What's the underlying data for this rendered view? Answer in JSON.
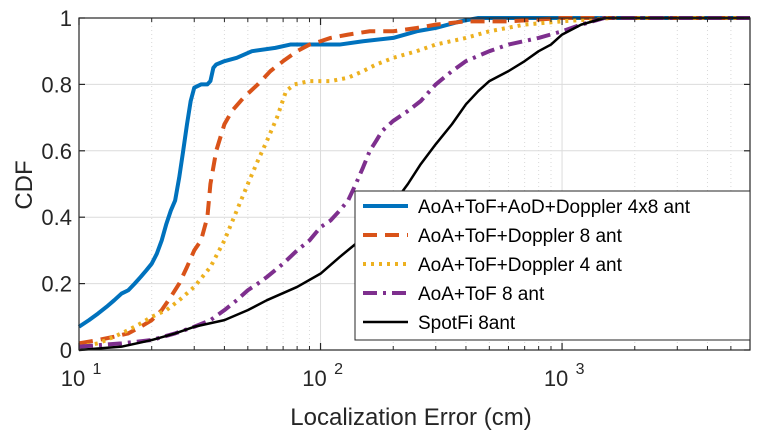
{
  "chart_data": {
    "type": "line",
    "xscale": "log",
    "xlabel": "Localization Error (cm)",
    "ylabel": "CDF",
    "xlim": [
      10,
      6000
    ],
    "ylim": [
      0,
      1
    ],
    "grid": true,
    "legend_position": "bottom-right",
    "xticks": [
      {
        "value": 10,
        "base": "10",
        "exp": "1"
      },
      {
        "value": 100,
        "base": "10",
        "exp": "2"
      },
      {
        "value": 1000,
        "base": "10",
        "exp": "3"
      }
    ],
    "yticks": [
      {
        "value": 0,
        "label": "0"
      },
      {
        "value": 0.2,
        "label": "0.2"
      },
      {
        "value": 0.4,
        "label": "0.4"
      },
      {
        "value": 0.6,
        "label": "0.6"
      },
      {
        "value": 0.8,
        "label": "0.8"
      },
      {
        "value": 1,
        "label": "1"
      }
    ],
    "series": [
      {
        "name": "AoA+ToF+AoD+Doppler 4x8 ant",
        "color": "#0072BD",
        "style": "solid",
        "width": 4,
        "points": [
          [
            10,
            0.07
          ],
          [
            11,
            0.09
          ],
          [
            12,
            0.11
          ],
          [
            13,
            0.13
          ],
          [
            14,
            0.15
          ],
          [
            15,
            0.17
          ],
          [
            16,
            0.18
          ],
          [
            17,
            0.2
          ],
          [
            18,
            0.22
          ],
          [
            19,
            0.24
          ],
          [
            20,
            0.26
          ],
          [
            21,
            0.29
          ],
          [
            22,
            0.33
          ],
          [
            23,
            0.38
          ],
          [
            24,
            0.42
          ],
          [
            25,
            0.45
          ],
          [
            26,
            0.52
          ],
          [
            27,
            0.6
          ],
          [
            28,
            0.68
          ],
          [
            29,
            0.75
          ],
          [
            30,
            0.79
          ],
          [
            32,
            0.8
          ],
          [
            34,
            0.8
          ],
          [
            35,
            0.81
          ],
          [
            36,
            0.85
          ],
          [
            37,
            0.86
          ],
          [
            40,
            0.87
          ],
          [
            45,
            0.88
          ],
          [
            52,
            0.9
          ],
          [
            65,
            0.91
          ],
          [
            75,
            0.92
          ],
          [
            100,
            0.92
          ],
          [
            120,
            0.92
          ],
          [
            150,
            0.93
          ],
          [
            200,
            0.94
          ],
          [
            250,
            0.96
          ],
          [
            300,
            0.97
          ],
          [
            380,
            0.99
          ],
          [
            450,
            1.0
          ],
          [
            6000,
            1.0
          ]
        ]
      },
      {
        "name": "AoA+ToF+Doppler 8 ant",
        "color": "#D95319",
        "style": "dash",
        "width": 4,
        "points": [
          [
            10,
            0.02
          ],
          [
            12,
            0.03
          ],
          [
            14,
            0.04
          ],
          [
            16,
            0.05
          ],
          [
            18,
            0.07
          ],
          [
            20,
            0.09
          ],
          [
            22,
            0.12
          ],
          [
            24,
            0.16
          ],
          [
            26,
            0.2
          ],
          [
            28,
            0.25
          ],
          [
            30,
            0.3
          ],
          [
            32,
            0.33
          ],
          [
            34,
            0.4
          ],
          [
            35,
            0.5
          ],
          [
            37,
            0.6
          ],
          [
            40,
            0.68
          ],
          [
            43,
            0.72
          ],
          [
            48,
            0.76
          ],
          [
            55,
            0.8
          ],
          [
            62,
            0.84
          ],
          [
            70,
            0.87
          ],
          [
            80,
            0.9
          ],
          [
            90,
            0.92
          ],
          [
            100,
            0.93
          ],
          [
            110,
            0.94
          ],
          [
            130,
            0.95
          ],
          [
            160,
            0.96
          ],
          [
            200,
            0.96
          ],
          [
            250,
            0.97
          ],
          [
            300,
            0.98
          ],
          [
            400,
            0.99
          ],
          [
            600,
            0.99
          ],
          [
            1000,
            1.0
          ],
          [
            6000,
            1.0
          ]
        ]
      },
      {
        "name": "AoA+ToF+Doppler 4 ant",
        "color": "#EDB120",
        "style": "dot",
        "width": 4,
        "points": [
          [
            10,
            0.01
          ],
          [
            12,
            0.02
          ],
          [
            14,
            0.04
          ],
          [
            16,
            0.06
          ],
          [
            18,
            0.08
          ],
          [
            20,
            0.1
          ],
          [
            23,
            0.12
          ],
          [
            26,
            0.15
          ],
          [
            30,
            0.19
          ],
          [
            35,
            0.25
          ],
          [
            40,
            0.33
          ],
          [
            45,
            0.42
          ],
          [
            50,
            0.5
          ],
          [
            55,
            0.57
          ],
          [
            60,
            0.63
          ],
          [
            66,
            0.7
          ],
          [
            72,
            0.78
          ],
          [
            78,
            0.8
          ],
          [
            90,
            0.81
          ],
          [
            110,
            0.81
          ],
          [
            130,
            0.82
          ],
          [
            150,
            0.84
          ],
          [
            170,
            0.86
          ],
          [
            200,
            0.88
          ],
          [
            250,
            0.9
          ],
          [
            300,
            0.92
          ],
          [
            400,
            0.94
          ],
          [
            500,
            0.96
          ],
          [
            700,
            0.98
          ],
          [
            1000,
            0.99
          ],
          [
            1600,
            1.0
          ],
          [
            6000,
            1.0
          ]
        ]
      },
      {
        "name": "AoA+ToF 8 ant",
        "color": "#7E2F8E",
        "style": "dashdot",
        "width": 4,
        "points": [
          [
            10,
            0.01
          ],
          [
            15,
            0.02
          ],
          [
            20,
            0.03
          ],
          [
            25,
            0.05
          ],
          [
            30,
            0.07
          ],
          [
            35,
            0.09
          ],
          [
            40,
            0.12
          ],
          [
            45,
            0.15
          ],
          [
            50,
            0.18
          ],
          [
            55,
            0.2
          ],
          [
            60,
            0.22
          ],
          [
            70,
            0.26
          ],
          [
            80,
            0.3
          ],
          [
            90,
            0.33
          ],
          [
            100,
            0.37
          ],
          [
            110,
            0.39
          ],
          [
            120,
            0.42
          ],
          [
            130,
            0.45
          ],
          [
            140,
            0.5
          ],
          [
            150,
            0.55
          ],
          [
            160,
            0.6
          ],
          [
            170,
            0.63
          ],
          [
            180,
            0.66
          ],
          [
            200,
            0.69
          ],
          [
            230,
            0.72
          ],
          [
            260,
            0.75
          ],
          [
            300,
            0.8
          ],
          [
            350,
            0.84
          ],
          [
            400,
            0.87
          ],
          [
            500,
            0.9
          ],
          [
            600,
            0.92
          ],
          [
            800,
            0.94
          ],
          [
            1000,
            0.96
          ],
          [
            1200,
            0.98
          ],
          [
            1500,
            1.0
          ],
          [
            6000,
            1.0
          ]
        ]
      },
      {
        "name": "SpotFi 8ant",
        "color": "#000000",
        "style": "solid",
        "width": 2.5,
        "points": [
          [
            10,
            0.0
          ],
          [
            15,
            0.01
          ],
          [
            20,
            0.03
          ],
          [
            25,
            0.05
          ],
          [
            30,
            0.07
          ],
          [
            40,
            0.09
          ],
          [
            50,
            0.12
          ],
          [
            60,
            0.15
          ],
          [
            80,
            0.19
          ],
          [
            100,
            0.23
          ],
          [
            120,
            0.28
          ],
          [
            140,
            0.32
          ],
          [
            160,
            0.36
          ],
          [
            180,
            0.4
          ],
          [
            200,
            0.44
          ],
          [
            230,
            0.5
          ],
          [
            260,
            0.56
          ],
          [
            300,
            0.62
          ],
          [
            350,
            0.68
          ],
          [
            400,
            0.74
          ],
          [
            450,
            0.78
          ],
          [
            500,
            0.81
          ],
          [
            600,
            0.84
          ],
          [
            700,
            0.87
          ],
          [
            800,
            0.9
          ],
          [
            900,
            0.92
          ],
          [
            1000,
            0.95
          ],
          [
            1200,
            0.98
          ],
          [
            1500,
            1.0
          ],
          [
            6000,
            1.0
          ]
        ]
      }
    ]
  }
}
